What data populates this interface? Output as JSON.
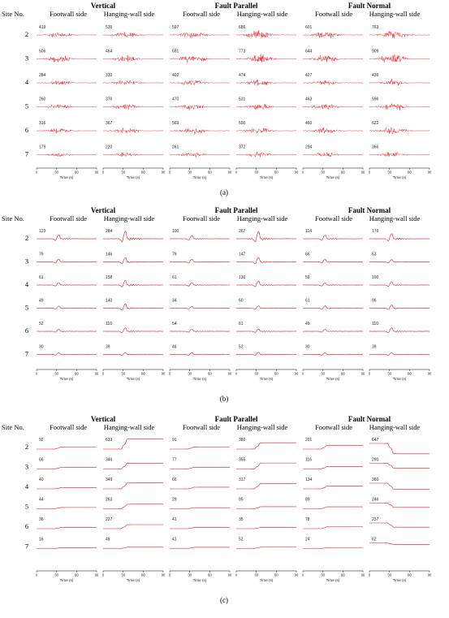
{
  "figure": {
    "site_label": "Site No.",
    "components": [
      "Vertical",
      "Fault Parallel",
      "Fault Normal"
    ],
    "sides": [
      "Footwall side",
      "Hanging-wall side"
    ],
    "sites": [
      "2",
      "3",
      "4",
      "5",
      "6",
      "7"
    ],
    "x_label": "Time (s)",
    "x_ticks": [
      "0",
      "30",
      "60",
      "90"
    ],
    "colors": {
      "trace": "#e8141c",
      "axis": "#000000",
      "text": "#000000"
    }
  },
  "chart_data": [
    {
      "type": "line",
      "caption": "(a)",
      "kind": "acc",
      "xlabel": "Time (s)",
      "xlim": [
        0,
        90
      ],
      "peaks": [
        [
          [
            419,
            506,
            284,
            260,
            316,
            179
          ],
          [
            535,
            464,
            330,
            376,
            367,
            220
          ]
        ],
        [
          [
            597,
            651,
            402,
            470,
            569,
            261
          ],
          [
            686,
            773,
            474,
            531,
            500,
            372
          ]
        ],
        [
          [
            601,
            644,
            427,
            463,
            460,
            294
          ],
          [
            763,
            909,
            436,
            596,
            622,
            366
          ]
        ]
      ]
    },
    {
      "type": "line",
      "caption": "(b)",
      "kind": "vel",
      "xlabel": "Time (s)",
      "xlim": [
        0,
        90
      ],
      "peaks": [
        [
          [
            123,
            79,
            61,
            49,
            52,
            30
          ],
          [
            284,
            146,
            158,
            140,
            110,
            39
          ]
        ],
        [
          [
            100,
            79,
            61,
            34,
            54,
            46
          ],
          [
            267,
            147,
            130,
            60,
            61,
            52
          ]
        ],
        [
          [
            114,
            66,
            59,
            61,
            49,
            30
          ],
          [
            176,
            63,
            100,
            96,
            110,
            39
          ]
        ]
      ]
    },
    {
      "type": "line",
      "caption": "(c)",
      "kind": "disp",
      "xlabel": "Time (s)",
      "xlim": [
        0,
        90
      ],
      "peaks": [
        [
          [
            92,
            66,
            40,
            44,
            36,
            16
          ],
          [
            633,
            346,
            349,
            263,
            227,
            48
          ]
        ],
        [
          [
            91,
            77,
            66,
            29,
            41,
            41
          ],
          [
            380,
            355,
            317,
            95,
            35,
            52
          ]
        ],
        [
          [
            201,
            116,
            134,
            89,
            78,
            24
          ],
          [
            647,
            290,
            360,
            246,
            237,
            62
          ]
        ]
      ]
    }
  ]
}
